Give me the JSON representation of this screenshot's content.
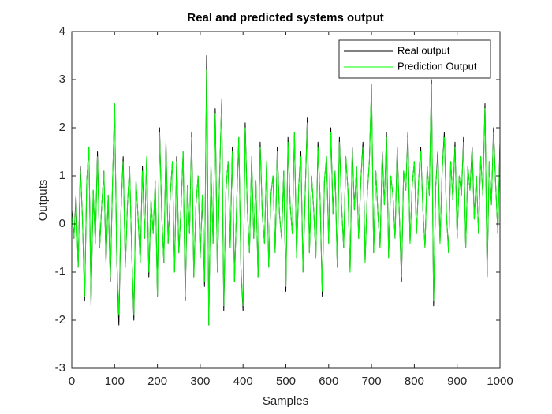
{
  "chart_data": {
    "type": "line",
    "title": "Real and predicted systems output",
    "xlabel": "Samples",
    "ylabel": "Outputs",
    "x": [
      0,
      5,
      10,
      15,
      20,
      25,
      30,
      35,
      40,
      45,
      50,
      55,
      60,
      65,
      70,
      75,
      80,
      85,
      90,
      95,
      100,
      105,
      110,
      115,
      120,
      125,
      130,
      135,
      140,
      145,
      150,
      155,
      160,
      165,
      170,
      175,
      180,
      185,
      190,
      195,
      200,
      205,
      210,
      215,
      220,
      225,
      230,
      235,
      240,
      245,
      250,
      255,
      260,
      265,
      270,
      275,
      280,
      285,
      290,
      295,
      300,
      305,
      310,
      315,
      320,
      325,
      330,
      335,
      340,
      345,
      350,
      355,
      360,
      365,
      370,
      375,
      380,
      385,
      390,
      395,
      400,
      405,
      410,
      415,
      420,
      425,
      430,
      435,
      440,
      445,
      450,
      455,
      460,
      465,
      470,
      475,
      480,
      485,
      490,
      495,
      500,
      505,
      510,
      515,
      520,
      525,
      530,
      535,
      540,
      545,
      550,
      555,
      560,
      565,
      570,
      575,
      580,
      585,
      590,
      595,
      600,
      605,
      610,
      615,
      620,
      625,
      630,
      635,
      640,
      645,
      650,
      655,
      660,
      665,
      670,
      675,
      680,
      685,
      690,
      695,
      700,
      705,
      710,
      715,
      720,
      725,
      730,
      735,
      740,
      745,
      750,
      755,
      760,
      765,
      770,
      775,
      780,
      785,
      790,
      795,
      800,
      805,
      810,
      815,
      820,
      825,
      830,
      835,
      840,
      845,
      850,
      855,
      860,
      865,
      870,
      875,
      880,
      885,
      890,
      895,
      900,
      905,
      910,
      915,
      920,
      925,
      930,
      935,
      940,
      945,
      950,
      955,
      960,
      965,
      970,
      975,
      980,
      985,
      990,
      995,
      1000
    ],
    "series": [
      {
        "name": "Real output",
        "color": "#000000",
        "values": [
          0.3,
          -0.3,
          0.6,
          -0.9,
          1.2,
          0.1,
          -1.6,
          0.9,
          1.6,
          -1.7,
          0.7,
          -0.4,
          1.5,
          -0.5,
          0.4,
          1.1,
          -0.8,
          0.6,
          -1.2,
          0.8,
          2.5,
          -0.7,
          -2.1,
          0.3,
          1.4,
          -0.9,
          0.4,
          1.2,
          -0.6,
          -2.0,
          0.9,
          0.1,
          -0.8,
          1.2,
          -0.3,
          1.4,
          -1.1,
          0.5,
          -0.2,
          0.9,
          -1.5,
          2.0,
          0.2,
          -0.8,
          1.7,
          -0.4,
          0.6,
          1.3,
          -1.0,
          1.4,
          -0.6,
          0.3,
          1.5,
          -1.6,
          0.8,
          -0.2,
          1.9,
          -1.1,
          0.4,
          1.0,
          -0.7,
          0.6,
          -1.3,
          3.5,
          -2.1,
          1.2,
          -0.4,
          2.4,
          -1.0,
          0.9,
          2.6,
          -1.8,
          0.7,
          1.3,
          -0.5,
          1.6,
          -1.2,
          0.4,
          1.8,
          -0.9,
          -1.8,
          2.1,
          0.3,
          -0.6,
          1.4,
          -0.3,
          0.9,
          -1.1,
          1.7,
          0.2,
          -0.4,
          1.3,
          -0.9,
          0.6,
          1.0,
          -0.6,
          1.6,
          0.2,
          -0.3,
          1.1,
          -1.4,
          1.8,
          0.4,
          -0.2,
          1.9,
          -0.7,
          0.8,
          1.5,
          -1.0,
          0.6,
          2.2,
          -0.6,
          1.0,
          0.3,
          -0.7,
          1.7,
          0.5,
          -1.5,
          0.9,
          1.4,
          -0.4,
          2.0,
          0.2,
          1.1,
          -0.9,
          1.8,
          0.4,
          -0.5,
          1.4,
          0.7,
          -1.0,
          1.6,
          0.3,
          1.2,
          -0.3,
          0.9,
          1.7,
          -0.8,
          0.6,
          1.3,
          2.9,
          -0.6,
          1.1,
          0.2,
          -0.5,
          1.5,
          0.4,
          1.9,
          -0.7,
          1.0,
          0.6,
          -0.3,
          1.6,
          0.2,
          -1.2,
          1.1,
          0.7,
          1.9,
          -0.4,
          0.8,
          1.3,
          -0.2,
          0.9,
          1.6,
          0.3,
          -0.5,
          1.2,
          0.6,
          3.0,
          -1.7,
          0.8,
          1.5,
          -0.4,
          1.1,
          1.9,
          0.2,
          -0.6,
          1.3,
          0.5,
          1.7,
          -0.3,
          1.0,
          0.6,
          1.8,
          -0.5,
          1.2,
          0.7,
          1.6,
          0.1,
          1.0,
          -0.2,
          1.4,
          0.6,
          2.5,
          -1.1,
          1.3,
          0.4,
          2.0,
          0.8,
          -0.2,
          1.7
        ]
      },
      {
        "name": "Prediction Output",
        "color": "#00ff00",
        "values": [
          0.2,
          -0.3,
          0.5,
          -0.9,
          1.1,
          0.1,
          -1.5,
          0.9,
          1.6,
          -1.6,
          0.7,
          -0.4,
          1.4,
          -0.5,
          0.4,
          1.1,
          -0.7,
          0.6,
          -1.1,
          0.8,
          2.5,
          -0.7,
          -1.9,
          0.3,
          1.3,
          -0.9,
          0.4,
          1.2,
          -0.6,
          -1.9,
          0.9,
          0.1,
          -0.8,
          1.1,
          -0.3,
          1.4,
          -1.0,
          0.5,
          -0.2,
          0.9,
          -1.5,
          1.9,
          0.2,
          -0.8,
          1.6,
          -0.4,
          0.6,
          1.3,
          -1.0,
          1.3,
          -0.6,
          0.3,
          1.5,
          -1.5,
          0.8,
          -0.2,
          1.8,
          -1.1,
          0.4,
          1.0,
          -0.7,
          0.6,
          -1.2,
          3.2,
          -2.1,
          1.2,
          -0.4,
          2.3,
          -1.0,
          0.9,
          2.6,
          -1.7,
          0.7,
          1.3,
          -0.5,
          1.5,
          -1.2,
          0.4,
          1.8,
          -0.9,
          -1.7,
          2.0,
          0.3,
          -0.6,
          1.4,
          -0.3,
          0.9,
          -1.1,
          1.6,
          0.2,
          -0.4,
          1.3,
          -0.9,
          0.6,
          1.0,
          -0.6,
          1.5,
          0.2,
          -0.3,
          1.1,
          -1.3,
          1.7,
          0.4,
          -0.2,
          1.9,
          -0.7,
          0.8,
          1.4,
          -1.0,
          0.6,
          2.1,
          -0.6,
          1.0,
          0.3,
          -0.7,
          1.6,
          0.5,
          -1.4,
          0.9,
          1.4,
          -0.4,
          1.9,
          0.2,
          1.1,
          -0.9,
          1.7,
          0.4,
          -0.5,
          1.4,
          0.7,
          -1.0,
          1.5,
          0.3,
          1.2,
          -0.3,
          0.9,
          1.6,
          -0.8,
          0.6,
          1.3,
          2.9,
          -0.6,
          1.1,
          0.2,
          -0.5,
          1.4,
          0.4,
          1.8,
          -0.7,
          1.0,
          0.6,
          -0.3,
          1.5,
          0.2,
          -1.1,
          1.1,
          0.7,
          1.8,
          -0.4,
          0.8,
          1.3,
          -0.2,
          0.9,
          1.5,
          0.3,
          -0.5,
          1.2,
          0.6,
          2.9,
          -1.6,
          0.8,
          1.4,
          -0.4,
          1.1,
          1.8,
          0.2,
          -0.6,
          1.3,
          0.5,
          1.6,
          -0.3,
          1.0,
          0.6,
          1.7,
          -0.5,
          1.2,
          0.7,
          1.5,
          0.1,
          1.0,
          -0.2,
          1.4,
          0.6,
          2.4,
          -1.0,
          1.3,
          0.4,
          1.9,
          0.8,
          -0.2,
          1.6
        ]
      }
    ],
    "xlim": [
      0,
      1000
    ],
    "ylim": [
      -3,
      4
    ],
    "xticks": [
      0,
      100,
      200,
      300,
      400,
      500,
      600,
      700,
      800,
      900,
      1000
    ],
    "yticks": [
      -3,
      -2,
      -1,
      0,
      1,
      2,
      3,
      4
    ],
    "grid": false,
    "legend": "northeast"
  }
}
